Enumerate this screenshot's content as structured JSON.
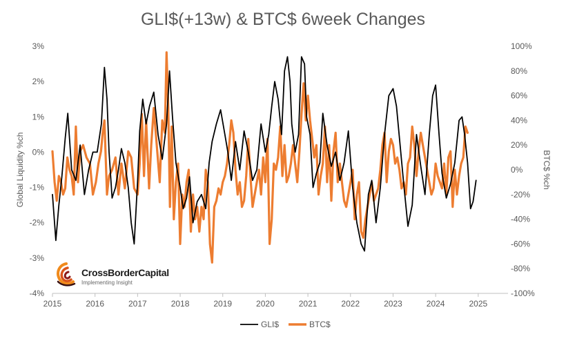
{
  "chart_data": {
    "type": "line",
    "title": "GLI$(+13w) & BTC$ 6week Changes",
    "ylabel": "Global Liquidity %ch",
    "y2label": "BTC$ %ch",
    "x_ticks": [
      "2015",
      "2016",
      "2017",
      "2018",
      "2019",
      "2020",
      "2021",
      "2022",
      "2023",
      "2024",
      "2025"
    ],
    "xlim": [
      2015,
      2025.7
    ],
    "ylim": [
      -4,
      3
    ],
    "y_ticks": [
      "3%",
      "2%",
      "1%",
      "0%",
      "-1%",
      "-2%",
      "-3%",
      "-4%"
    ],
    "y2lim": [
      -100,
      100
    ],
    "y2_ticks": [
      "100%",
      "80%",
      "60%",
      "40%",
      "20%",
      "0%",
      "-20%",
      "-40%",
      "-60%",
      "-80%",
      "-100%"
    ],
    "grid": false,
    "legend_position": "bottom",
    "series": [
      {
        "name": "GLI$",
        "axis": "left",
        "color": "#000000",
        "x": [
          2015.0,
          2015.08,
          2015.15,
          2015.22,
          2015.3,
          2015.36,
          2015.45,
          2015.55,
          2015.65,
          2015.75,
          2015.85,
          2015.95,
          2016.05,
          2016.15,
          2016.22,
          2016.28,
          2016.33,
          2016.4,
          2016.48,
          2016.55,
          2016.62,
          2016.7,
          2016.78,
          2016.85,
          2016.92,
          2017.0,
          2017.05,
          2017.12,
          2017.2,
          2017.28,
          2017.38,
          2017.48,
          2017.58,
          2017.68,
          2017.75,
          2017.82,
          2017.9,
          2018.0,
          2018.07,
          2018.15,
          2018.22,
          2018.3,
          2018.4,
          2018.5,
          2018.6,
          2018.68,
          2018.75,
          2018.85,
          2018.95,
          2019.05,
          2019.12,
          2019.2,
          2019.3,
          2019.4,
          2019.5,
          2019.6,
          2019.7,
          2019.8,
          2019.9,
          2020.0,
          2020.08,
          2020.15,
          2020.22,
          2020.3,
          2020.38,
          2020.45,
          2020.52,
          2020.58,
          2020.62,
          2020.7,
          2020.78,
          2020.85,
          2020.92,
          2020.97,
          2021.05,
          2021.12,
          2021.2,
          2021.28,
          2021.35,
          2021.45,
          2021.55,
          2021.65,
          2021.75,
          2021.85,
          2021.95,
          2022.05,
          2022.15,
          2022.25,
          2022.33,
          2022.42,
          2022.5,
          2022.6,
          2022.7,
          2022.8,
          2022.9,
          2023.0,
          2023.08,
          2023.15,
          2023.25,
          2023.35,
          2023.45,
          2023.55,
          2023.65,
          2023.75,
          2023.85,
          2023.93,
          2024.0,
          2024.08,
          2024.15,
          2024.25,
          2024.35,
          2024.45,
          2024.55,
          2024.62,
          2024.68,
          2024.75,
          2024.82,
          2024.88,
          2024.95
        ],
        "values": [
          -1.2,
          -2.5,
          -1.5,
          -0.7,
          0.4,
          1.1,
          -0.5,
          -0.8,
          0.2,
          -1.2,
          -0.5,
          0.0,
          0.0,
          0.8,
          2.4,
          1.5,
          0.0,
          -1.3,
          -1.0,
          -0.5,
          0.1,
          -0.3,
          -1.0,
          -2.0,
          -2.6,
          -0.8,
          0.6,
          1.5,
          0.8,
          1.3,
          1.7,
          0.5,
          -0.2,
          0.8,
          2.3,
          1.0,
          -0.3,
          -1.0,
          -1.6,
          -1.3,
          -0.7,
          -2.0,
          -1.4,
          -1.2,
          -1.6,
          -0.3,
          0.3,
          0.8,
          1.2,
          0.5,
          0.0,
          -0.8,
          0.3,
          -0.5,
          0.6,
          0.0,
          -0.8,
          -0.5,
          0.8,
          0.0,
          0.5,
          1.3,
          2.0,
          1.5,
          0.5,
          2.3,
          2.7,
          2.0,
          0.8,
          0.0,
          0.5,
          2.7,
          2.5,
          1.0,
          0.5,
          -1.0,
          -0.6,
          -0.3,
          1.1,
          0.2,
          -0.4,
          0.0,
          -0.8,
          -0.3,
          0.6,
          -1.0,
          -2.0,
          -2.6,
          -2.8,
          -1.2,
          -0.8,
          -2.0,
          -1.0,
          0.5,
          1.6,
          1.8,
          1.3,
          0.4,
          -0.9,
          -2.1,
          -1.5,
          0.5,
          -0.4,
          -1.2,
          0.5,
          1.6,
          1.9,
          0.5,
          -0.6,
          -1.3,
          -0.9,
          -0.3,
          0.9,
          1.0,
          0.5,
          -0.3,
          -1.6,
          -1.4,
          -0.8
        ]
      },
      {
        "name": "BTC$",
        "axis": "right",
        "color": "#ed7d31",
        "x": [
          2015.0,
          2015.05,
          2015.1,
          2015.15,
          2015.2,
          2015.25,
          2015.3,
          2015.35,
          2015.4,
          2015.45,
          2015.5,
          2015.55,
          2015.6,
          2015.65,
          2015.72,
          2015.8,
          2015.88,
          2015.95,
          2016.02,
          2016.08,
          2016.14,
          2016.18,
          2016.22,
          2016.28,
          2016.33,
          2016.4,
          2016.48,
          2016.55,
          2016.62,
          2016.7,
          2016.78,
          2016.85,
          2016.92,
          2017.0,
          2017.05,
          2017.1,
          2017.15,
          2017.2,
          2017.27,
          2017.32,
          2017.38,
          2017.45,
          2017.52,
          2017.58,
          2017.64,
          2017.68,
          2017.72,
          2017.76,
          2017.8,
          2017.85,
          2017.9,
          2017.95,
          2018.0,
          2018.05,
          2018.1,
          2018.15,
          2018.2,
          2018.25,
          2018.3,
          2018.35,
          2018.4,
          2018.45,
          2018.5,
          2018.55,
          2018.6,
          2018.65,
          2018.7,
          2018.75,
          2018.8,
          2018.85,
          2018.9,
          2018.95,
          2019.0,
          2019.05,
          2019.1,
          2019.15,
          2019.2,
          2019.25,
          2019.3,
          2019.35,
          2019.4,
          2019.45,
          2019.5,
          2019.55,
          2019.6,
          2019.65,
          2019.7,
          2019.75,
          2019.8,
          2019.85,
          2019.9,
          2019.95,
          2020.0,
          2020.05,
          2020.1,
          2020.15,
          2020.2,
          2020.25,
          2020.3,
          2020.35,
          2020.4,
          2020.45,
          2020.5,
          2020.55,
          2020.6,
          2020.65,
          2020.7,
          2020.75,
          2020.8,
          2020.85,
          2020.9,
          2020.95,
          2021.0,
          2021.05,
          2021.1,
          2021.15,
          2021.2,
          2021.25,
          2021.3,
          2021.35,
          2021.4,
          2021.45,
          2021.5,
          2021.55,
          2021.6,
          2021.65,
          2021.7,
          2021.75,
          2021.8,
          2021.85,
          2021.9,
          2021.95,
          2022.0,
          2022.05,
          2022.1,
          2022.15,
          2022.2,
          2022.25,
          2022.3,
          2022.35,
          2022.4,
          2022.45,
          2022.5,
          2022.55,
          2022.6,
          2022.65,
          2022.7,
          2022.75,
          2022.8,
          2022.85,
          2022.9,
          2022.95,
          2023.0,
          2023.05,
          2023.1,
          2023.15,
          2023.2,
          2023.25,
          2023.3,
          2023.35,
          2023.4,
          2023.45,
          2023.5,
          2023.55,
          2023.6,
          2023.65,
          2023.7,
          2023.75,
          2023.8,
          2023.85,
          2023.9,
          2023.95,
          2024.0,
          2024.05,
          2024.1,
          2024.15,
          2024.2,
          2024.25,
          2024.3,
          2024.35,
          2024.4,
          2024.45,
          2024.5,
          2024.55,
          2024.6,
          2024.65,
          2024.7,
          2024.75
        ],
        "values": [
          15,
          -10,
          -25,
          -5,
          -10,
          -20,
          -15,
          10,
          0,
          -5,
          -20,
          35,
          -10,
          15,
          20,
          10,
          5,
          -20,
          -10,
          5,
          15,
          30,
          40,
          -20,
          -5,
          0,
          10,
          -20,
          5,
          -15,
          15,
          10,
          -15,
          -20,
          5,
          45,
          -5,
          40,
          -15,
          20,
          50,
          20,
          -10,
          40,
          30,
          95,
          50,
          -30,
          35,
          -40,
          -10,
          5,
          -60,
          -20,
          -30,
          -10,
          0,
          -50,
          -20,
          -40,
          -30,
          -50,
          -30,
          -40,
          0,
          -10,
          -60,
          -75,
          -30,
          -25,
          -15,
          -20,
          -10,
          -5,
          5,
          20,
          40,
          30,
          0,
          -20,
          -10,
          -30,
          -25,
          -5,
          25,
          -5,
          -30,
          -20,
          -10,
          0,
          -20,
          10,
          -10,
          25,
          -60,
          -40,
          5,
          0,
          10,
          35,
          -5,
          20,
          -10,
          -5,
          5,
          20,
          5,
          -10,
          15,
          45,
          70,
          40,
          60,
          40,
          25,
          10,
          20,
          -20,
          -5,
          5,
          35,
          -10,
          20,
          -25,
          15,
          30,
          -10,
          5,
          -10,
          -25,
          -30,
          -20,
          -10,
          0,
          -40,
          -20,
          -10,
          -50,
          -55,
          -40,
          -30,
          -20,
          -10,
          -25,
          -20,
          -15,
          0,
          20,
          30,
          -10,
          15,
          25,
          20,
          5,
          10,
          0,
          -15,
          -10,
          -20,
          5,
          10,
          35,
          20,
          -5,
          15,
          30,
          20,
          10,
          0,
          -10,
          -20,
          -15,
          5,
          -5,
          -10,
          -15,
          5,
          -20,
          10,
          15,
          -30,
          0,
          -20,
          -5,
          5,
          10,
          35,
          30
        ]
      }
    ]
  }
}
